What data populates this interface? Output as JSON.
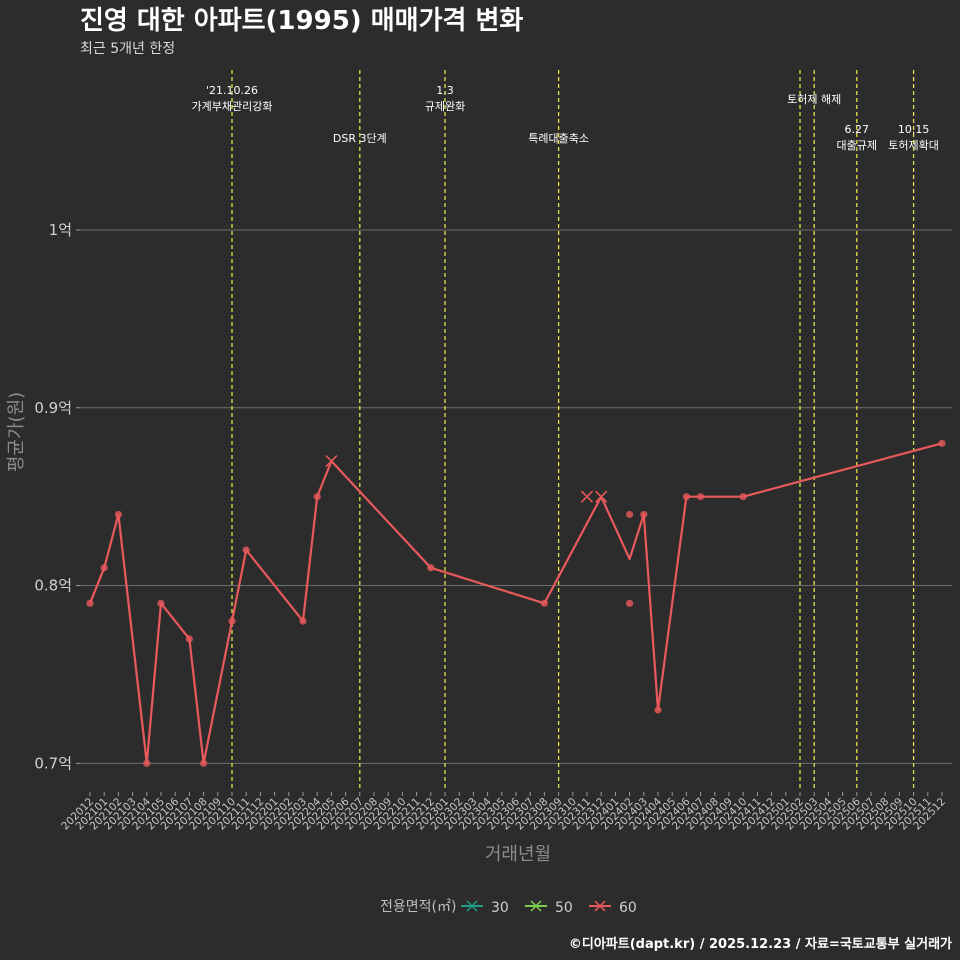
{
  "chart_data": {
    "type": "line",
    "title": "진영 대한 아파트(1995) 매매가격 변화",
    "subtitle": "최근 5개년 한정",
    "xlabel": "거래년월",
    "ylabel": "평균가(원)",
    "caption": "©디아파트(dapt.kr) / 2025.12.23 / 자료=국토교통부 실거래가",
    "ylim": [
      0.685,
      1.09
    ],
    "y_ticks": [
      {
        "value": 0.7,
        "label": "0.7억"
      },
      {
        "value": 0.8,
        "label": "0.8억"
      },
      {
        "value": 0.9,
        "label": "0.9억"
      },
      {
        "value": 1.0,
        "label": "1억"
      }
    ],
    "x_categories": [
      "202012",
      "202101",
      "202102",
      "202103",
      "202104",
      "202105",
      "202106",
      "202107",
      "202108",
      "202109",
      "202110",
      "202111",
      "202112",
      "202201",
      "202202",
      "202203",
      "202204",
      "202205",
      "202206",
      "202207",
      "202208",
      "202209",
      "202210",
      "202211",
      "202212",
      "202301",
      "202302",
      "202303",
      "202304",
      "202305",
      "202306",
      "202307",
      "202308",
      "202309",
      "202310",
      "202311",
      "202312",
      "202401",
      "202402",
      "202403",
      "202404",
      "202405",
      "202406",
      "202407",
      "202408",
      "202409",
      "202410",
      "202411",
      "202412",
      "202501",
      "202502",
      "202503",
      "202504",
      "202505",
      "202506",
      "202507",
      "202508",
      "202509",
      "202510",
      "202511",
      "202512"
    ],
    "legend": {
      "title": "전용면적(㎡)",
      "items": [
        {
          "label": "30",
          "color": "#1f9e89"
        },
        {
          "label": "50",
          "color": "#7ad151"
        },
        {
          "label": "60",
          "color": "#e8595b"
        }
      ]
    },
    "series": [
      {
        "name": "60",
        "color": "#e8595b",
        "line": [
          [
            0,
            0.79
          ],
          [
            1,
            0.81
          ],
          [
            2,
            0.84
          ],
          [
            4,
            0.7
          ],
          [
            5,
            0.79
          ],
          [
            7,
            0.77
          ],
          [
            8,
            0.7
          ],
          [
            10,
            0.78
          ],
          [
            11,
            0.82
          ],
          [
            15,
            0.78
          ],
          [
            16,
            0.85
          ],
          [
            17,
            0.87
          ],
          [
            24,
            0.81
          ],
          [
            32,
            0.79
          ],
          [
            36,
            0.85
          ],
          [
            38,
            0.815
          ],
          [
            39,
            0.84
          ],
          [
            40,
            0.73
          ],
          [
            42,
            0.85
          ],
          [
            43,
            0.85
          ],
          [
            46,
            0.85
          ],
          [
            60,
            0.88
          ]
        ],
        "points": [
          [
            0,
            0.79
          ],
          [
            1,
            0.81
          ],
          [
            2,
            0.84
          ],
          [
            4,
            0.7
          ],
          [
            5,
            0.79
          ],
          [
            7,
            0.77
          ],
          [
            8,
            0.7
          ],
          [
            10,
            0.78
          ],
          [
            11,
            0.82
          ],
          [
            15,
            0.78
          ],
          [
            16,
            0.85
          ],
          [
            24,
            0.81
          ],
          [
            32,
            0.79
          ],
          [
            38,
            0.84
          ],
          [
            38,
            0.79
          ],
          [
            39,
            0.84
          ],
          [
            40,
            0.73
          ],
          [
            42,
            0.85
          ],
          [
            43,
            0.85
          ],
          [
            46,
            0.85
          ],
          [
            60,
            0.88
          ]
        ],
        "cross_points": [
          [
            17,
            0.87
          ],
          [
            35,
            0.85
          ],
          [
            36,
            0.85
          ]
        ]
      }
    ],
    "events": [
      {
        "x": 10,
        "lines": [
          "'21.10.26",
          "가계부채관리강화"
        ],
        "row": 1
      },
      {
        "x": 19,
        "lines": [
          "DSR 3단계"
        ],
        "row": 2
      },
      {
        "x": 25,
        "lines": [
          "1.3",
          "규제완화"
        ],
        "row": 1
      },
      {
        "x": 33,
        "lines": [
          "특례대출축소"
        ],
        "row": 2
      },
      {
        "x": 50,
        "lines": [],
        "row": 1
      },
      {
        "x": 51,
        "lines": [
          "토허제 해제"
        ],
        "row": 1
      },
      {
        "x": 54,
        "lines": [
          "6.27",
          "대출규제"
        ],
        "row": 2
      },
      {
        "x": 58,
        "lines": [
          "10.15",
          "토허제확대"
        ],
        "row": 2
      }
    ]
  }
}
